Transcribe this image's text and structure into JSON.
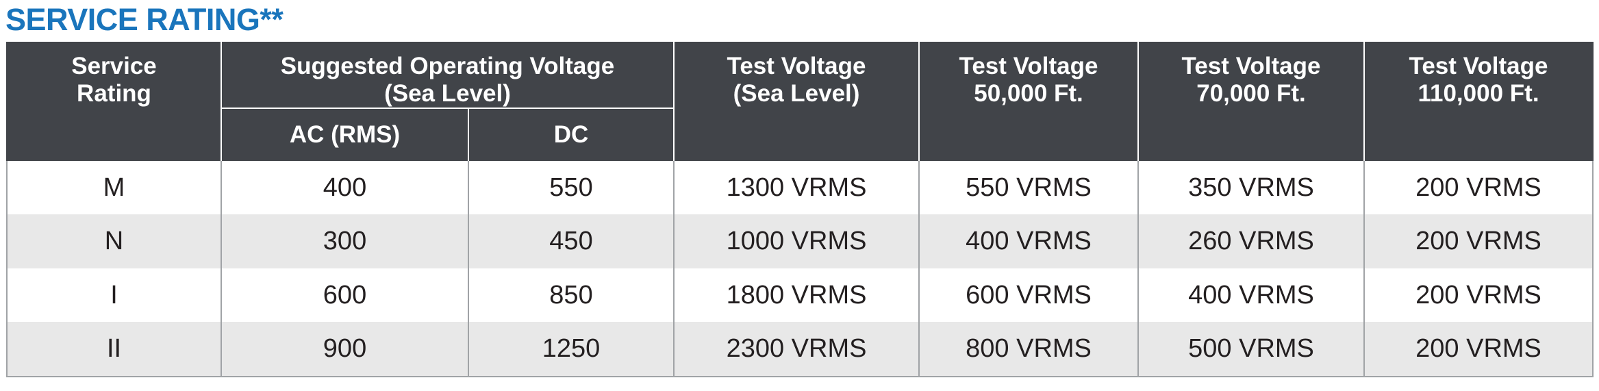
{
  "title": "SERVICE RATING**",
  "headers": {
    "service_rating": [
      "Service",
      "Rating"
    ],
    "suggested_voltage": [
      "Suggested Operating Voltage",
      "(Sea Level)"
    ],
    "ac": "AC (RMS)",
    "dc": "DC",
    "test_sea_level": [
      "Test Voltage",
      "(Sea Level)"
    ],
    "test_50k": [
      "Test Voltage",
      "50,000 Ft."
    ],
    "test_70k": [
      "Test Voltage",
      "70,000 Ft."
    ],
    "test_110k": [
      "Test Voltage",
      "110,000 Ft."
    ]
  },
  "rows": [
    {
      "rating": "M",
      "ac": "400",
      "dc": "550",
      "sea": "1300 VRMS",
      "ft50k": "550 VRMS",
      "ft70k": "350 VRMS",
      "ft110k": "200 VRMS"
    },
    {
      "rating": "N",
      "ac": "300",
      "dc": "450",
      "sea": "1000 VRMS",
      "ft50k": "400 VRMS",
      "ft70k": "260 VRMS",
      "ft110k": "200 VRMS"
    },
    {
      "rating": "I",
      "ac": "600",
      "dc": "850",
      "sea": "1800 VRMS",
      "ft50k": "600 VRMS",
      "ft70k": "400 VRMS",
      "ft110k": "200 VRMS"
    },
    {
      "rating": "II",
      "ac": "900",
      "dc": "1250",
      "sea": "2300 VRMS",
      "ft50k": "800 VRMS",
      "ft70k": "500 VRMS",
      "ft110k": "200 VRMS"
    }
  ],
  "colors": {
    "title": "#1a75bc",
    "header_bg": "#414449",
    "row_alt_bg": "#e8e8e8"
  }
}
